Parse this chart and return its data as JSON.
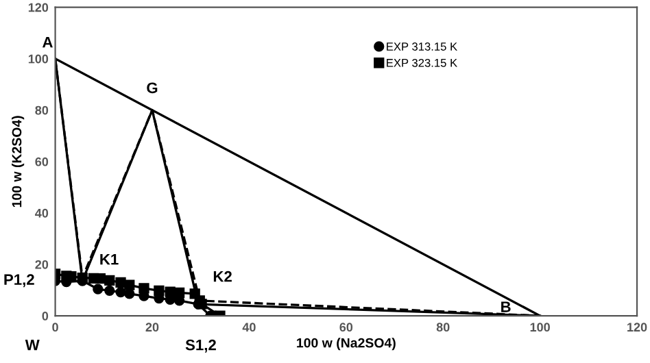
{
  "chart_data": {
    "type": "line",
    "xlabel": "100 w (Na2SO4)",
    "ylabel": "100 w (K2SO4)",
    "xlim": [
      0,
      120
    ],
    "ylim": [
      0,
      120
    ],
    "xticks": [
      0,
      20,
      40,
      60,
      80,
      100,
      120
    ],
    "yticks": [
      0,
      20,
      40,
      60,
      80,
      100,
      120
    ],
    "grid": false,
    "legend": "top",
    "series": [
      {
        "name": "EXP 313.15 K",
        "color": "#000000",
        "marker": "circle",
        "line_style": "solid",
        "x": [
          0,
          2.3,
          5.6,
          8.8,
          11.2,
          13.5,
          15.3,
          18.3,
          21.4,
          23.7,
          25.6,
          29.5,
          32,
          33
        ],
        "values": [
          13.6,
          13.2,
          13.6,
          10.4,
          9.8,
          9.2,
          8.6,
          7.7,
          6.8,
          6.3,
          5.9,
          4.5,
          0,
          0
        ]
      },
      {
        "name": "EXP 323.15 K",
        "color": "#000000",
        "marker": "square",
        "line_style": "solid",
        "x": [
          0,
          2.3,
          3.3,
          5.6,
          7.9,
          9.3,
          11.2,
          13.5,
          15.3,
          18.3,
          21.4,
          23.7,
          25.6,
          28.8,
          29.8,
          30.2,
          34
        ],
        "values": [
          16.3,
          15.5,
          15.3,
          14.8,
          14.6,
          14.5,
          13.8,
          13,
          12,
          10.7,
          9.8,
          9.3,
          9,
          8.6,
          5.9,
          4.6,
          0
        ]
      },
      {
        "color": "#000000",
        "marker": "none",
        "line_style": "solid",
        "x": [
          0,
          100
        ],
        "values": [
          100,
          0
        ]
      },
      {
        "color": "#000000",
        "marker": "none",
        "line_style": "solid",
        "x": [
          0,
          5.6,
          20,
          29.5,
          100
        ],
        "values": [
          100,
          13.6,
          80,
          4.5,
          0
        ]
      },
      {
        "color": "#000000",
        "marker": "none",
        "line_style": "dashed",
        "x": [
          0,
          5.6,
          20,
          29.8,
          100
        ],
        "values": [
          100,
          14.8,
          80,
          5.9,
          0
        ]
      }
    ],
    "annotations": [
      {
        "text": "A",
        "x": 0,
        "y": 100
      },
      {
        "text": "G",
        "x": 20,
        "y": 80
      },
      {
        "text": "K1",
        "x": 5.6,
        "y": 14.8
      },
      {
        "text": "K2",
        "x": 29.8,
        "y": 5.9
      },
      {
        "text": "P1,2",
        "x": 0,
        "y": 13.6
      },
      "W",
      {
        "text": "S1,2",
        "x": 32,
        "y": 0
      },
      {
        "text": "B",
        "x": 100,
        "y": 0
      }
    ]
  }
}
